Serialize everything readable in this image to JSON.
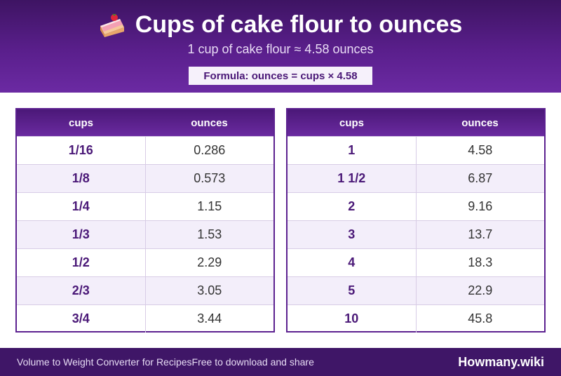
{
  "header": {
    "title": "Cups of cake flour to ounces",
    "title_icon": "cake-slice-icon",
    "subtitle": "1 cup of cake flour ≈ 4.58 ounces",
    "formula": "Formula: ounces = cups × 4.58"
  },
  "tables": [
    {
      "columns": [
        "cups",
        "ounces"
      ],
      "rows": [
        {
          "cups": "1/16",
          "ounces": "0.286"
        },
        {
          "cups": "1/8",
          "ounces": "0.573"
        },
        {
          "cups": "1/4",
          "ounces": "1.15"
        },
        {
          "cups": "1/3",
          "ounces": "1.53"
        },
        {
          "cups": "1/2",
          "ounces": "2.29"
        },
        {
          "cups": "2/3",
          "ounces": "3.05"
        },
        {
          "cups": "3/4",
          "ounces": "3.44"
        }
      ]
    },
    {
      "columns": [
        "cups",
        "ounces"
      ],
      "rows": [
        {
          "cups": "1",
          "ounces": "4.58"
        },
        {
          "cups": "1 1/2",
          "ounces": "6.87"
        },
        {
          "cups": "2",
          "ounces": "9.16"
        },
        {
          "cups": "3",
          "ounces": "13.7"
        },
        {
          "cups": "4",
          "ounces": "18.3"
        },
        {
          "cups": "5",
          "ounces": "22.9"
        },
        {
          "cups": "10",
          "ounces": "45.8"
        }
      ]
    }
  ],
  "footer": {
    "left_text": "Volume to Weight Converter for RecipesFree to download and share",
    "brand": "Howmany.wiki"
  },
  "colors": {
    "header_purple": "#5a1f8c",
    "accent_text": "#4a1877",
    "footer_purple": "#3f1667"
  }
}
